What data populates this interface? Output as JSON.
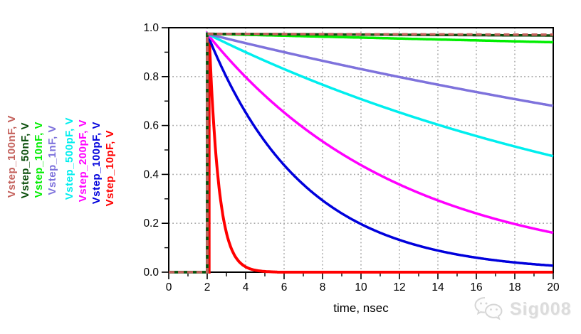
{
  "watermark": {
    "text": "Sig008",
    "logo": "wechat-icon"
  },
  "chart_data": {
    "type": "line",
    "title": "",
    "xlabel": "time, nsec",
    "ylabel": "",
    "xlim": [
      0,
      20
    ],
    "ylim": [
      0.0,
      1.0
    ],
    "x_tick_labels": [
      "0",
      "2",
      "4",
      "6",
      "8",
      "10",
      "12",
      "14",
      "16",
      "18",
      "20"
    ],
    "y_tick_labels": [
      "0.0",
      "0.2",
      "0.4",
      "0.6",
      "0.8",
      "1.0"
    ],
    "x_minor_step_ns": 1,
    "y_minor_step": 0.1,
    "grid": {
      "style": "dotted",
      "color": "#aaaaaa",
      "x_lines_ns": [
        2,
        4,
        6,
        8,
        10,
        12,
        14,
        16,
        18
      ],
      "y_lines": [
        0.2,
        0.4,
        0.6,
        0.8
      ]
    },
    "axis_color": "#000000",
    "legend_position": "left-rotated",
    "step": {
      "start_ns": 2.0,
      "amplitude": 0.975
    },
    "samples_t_ns": [
      2,
      4,
      6,
      8,
      10,
      12,
      14,
      16,
      18,
      20
    ],
    "series": [
      {
        "name": "Vstep_100nF",
        "legend_label": "Vstep_100nF, V",
        "color": "#c4615c",
        "line_style": "dashed",
        "tau_ns": 5000,
        "rise_ns": 2.0,
        "samples_v": [
          0.975,
          0.975,
          0.974,
          0.974,
          0.973,
          0.973,
          0.973,
          0.972,
          0.972,
          0.971
        ]
      },
      {
        "name": "Vstep_50nF",
        "legend_label": "Vstep_50nF, V",
        "color": "#0b4f0c",
        "line_style": "solid",
        "tau_ns": 2500,
        "rise_ns": 2.0,
        "samples_v": [
          0.975,
          0.974,
          0.973,
          0.973,
          0.972,
          0.971,
          0.97,
          0.97,
          0.969,
          0.968
        ]
      },
      {
        "name": "Vstep_10nF",
        "legend_label": "Vstep_10nF, V",
        "color": "#00ee00",
        "line_style": "solid",
        "tau_ns": 500,
        "rise_ns": 2.0,
        "samples_v": [
          0.975,
          0.971,
          0.967,
          0.963,
          0.96,
          0.956,
          0.952,
          0.948,
          0.944,
          0.941
        ]
      },
      {
        "name": "Vstep_1nF",
        "legend_label": "Vstep_1nF, V",
        "color": "#7e72dc",
        "line_style": "solid",
        "tau_ns": 50,
        "rise_ns": 2.0,
        "samples_v": [
          0.975,
          0.937,
          0.9,
          0.865,
          0.831,
          0.798,
          0.767,
          0.737,
          0.708,
          0.681
        ]
      },
      {
        "name": "Vstep_500pF",
        "legend_label": "Vstep_500pF, V",
        "color": "#00eeee",
        "line_style": "solid",
        "tau_ns": 25,
        "rise_ns": 2.0,
        "samples_v": [
          0.975,
          0.9,
          0.831,
          0.767,
          0.708,
          0.653,
          0.603,
          0.556,
          0.513,
          0.474
        ]
      },
      {
        "name": "Vstep_200pF",
        "legend_label": "Vstep_200pF, V",
        "color": "#ff00ff",
        "line_style": "solid",
        "tau_ns": 10,
        "rise_ns": 2.0,
        "samples_v": [
          0.975,
          0.798,
          0.654,
          0.535,
          0.438,
          0.359,
          0.294,
          0.241,
          0.197,
          0.161
        ]
      },
      {
        "name": "Vstep_100pF",
        "legend_label": "Vstep_100pF, V",
        "color": "#0000dc",
        "line_style": "solid",
        "tau_ns": 5,
        "rise_ns": 2.0,
        "samples_v": [
          0.975,
          0.653,
          0.438,
          0.294,
          0.197,
          0.132,
          0.089,
          0.059,
          0.04,
          0.027
        ]
      },
      {
        "name": "Vstep_10pF",
        "legend_label": "Vstep_10pF, V",
        "color": "#ff0000",
        "line_style": "solid",
        "tau_ns": 0.5,
        "rise_ns": 2.1,
        "samples_v": [
          0.975,
          0.018,
          0.0,
          0.0,
          0.0,
          0.0,
          0.0,
          0.0,
          0.0,
          0.0
        ]
      }
    ]
  }
}
